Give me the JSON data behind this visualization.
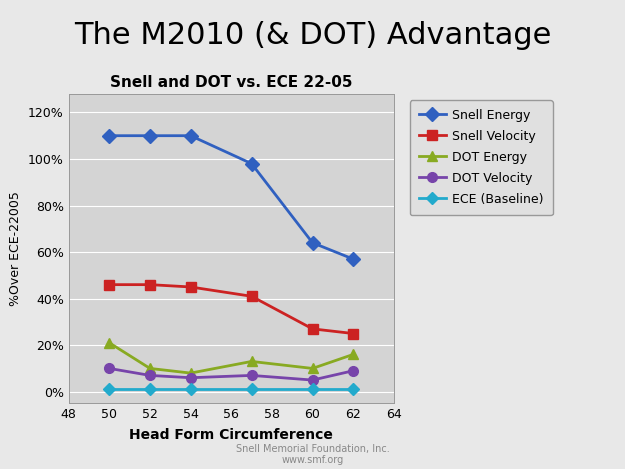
{
  "title_main": "The M2010 (& DOT) Advantage",
  "title_sub": "Snell and DOT vs. ECE 22-05",
  "xlabel": "Head Form Circumference",
  "ylabel": "%Over ECE-22005",
  "footnote1": "Snell Memorial Foundation, Inc.",
  "footnote2": "www.smf.org",
  "xlim": [
    48,
    64
  ],
  "ylim": [
    -0.05,
    1.28
  ],
  "xticks": [
    48,
    50,
    52,
    54,
    56,
    58,
    60,
    62,
    64
  ],
  "yticks": [
    0.0,
    0.2,
    0.4,
    0.6,
    0.8,
    1.0,
    1.2
  ],
  "ytick_labels": [
    "0%",
    "20%",
    "40%",
    "60%",
    "80%",
    "100%",
    "120%"
  ],
  "series": [
    {
      "name": "Snell Energy",
      "x": [
        50,
        52,
        54,
        57,
        60,
        62
      ],
      "y": [
        1.1,
        1.1,
        1.1,
        0.98,
        0.64,
        0.57
      ],
      "color": "#3060C0",
      "marker": "D",
      "linewidth": 2.0,
      "markersize": 7
    },
    {
      "name": "Snell Velocity",
      "x": [
        50,
        52,
        54,
        57,
        60,
        62
      ],
      "y": [
        0.46,
        0.46,
        0.45,
        0.41,
        0.27,
        0.25
      ],
      "color": "#CC2222",
      "marker": "s",
      "linewidth": 2.0,
      "markersize": 7
    },
    {
      "name": "DOT Energy",
      "x": [
        50,
        52,
        54,
        57,
        60,
        62
      ],
      "y": [
        0.21,
        0.1,
        0.08,
        0.13,
        0.1,
        0.16
      ],
      "color": "#88AA22",
      "marker": "^",
      "linewidth": 2.0,
      "markersize": 7
    },
    {
      "name": "DOT Velocity",
      "x": [
        50,
        52,
        54,
        57,
        60,
        62
      ],
      "y": [
        0.1,
        0.07,
        0.06,
        0.07,
        0.05,
        0.09
      ],
      "color": "#7744AA",
      "marker": "o",
      "linewidth": 2.0,
      "markersize": 7
    },
    {
      "name": "ECE (Baseline)",
      "x": [
        50,
        52,
        54,
        57,
        60,
        62
      ],
      "y": [
        0.01,
        0.01,
        0.01,
        0.01,
        0.01,
        0.01
      ],
      "color": "#22AACC",
      "marker": "D",
      "linewidth": 2.0,
      "markersize": 6
    }
  ],
  "plot_bg": "#D4D4D4",
  "outer_bg": "#E8E8E8",
  "title_fontsize": 22,
  "subtitle_fontsize": 11,
  "tick_fontsize": 9,
  "xlabel_fontsize": 10,
  "ylabel_fontsize": 9,
  "legend_fontsize": 9,
  "footnote_fontsize": 7
}
